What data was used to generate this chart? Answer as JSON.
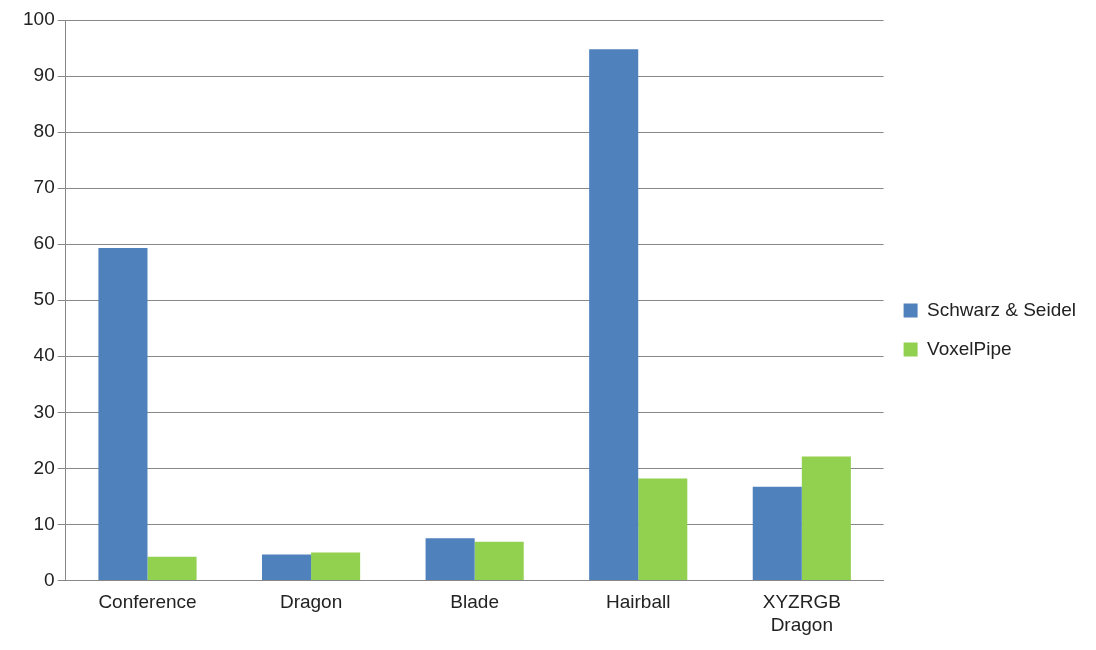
{
  "chart_data": {
    "type": "bar",
    "categories": [
      "Conference",
      "Dragon",
      "Blade",
      "Hairball",
      "XYZRGB Dragon"
    ],
    "series": [
      {
        "name": "Schwarz & Seidel",
        "color": "#4f81bd",
        "values": [
          59.3,
          4.6,
          7.5,
          94.8,
          16.7
        ]
      },
      {
        "name": "VoxelPipe",
        "color": "#92d050",
        "values": [
          4.2,
          5.0,
          6.9,
          18.2,
          22.1
        ]
      }
    ],
    "ylim": [
      0,
      100
    ],
    "yticks": [
      0,
      10,
      20,
      30,
      40,
      50,
      60,
      70,
      80,
      90,
      100
    ],
    "grid": "y",
    "legend": "right"
  }
}
